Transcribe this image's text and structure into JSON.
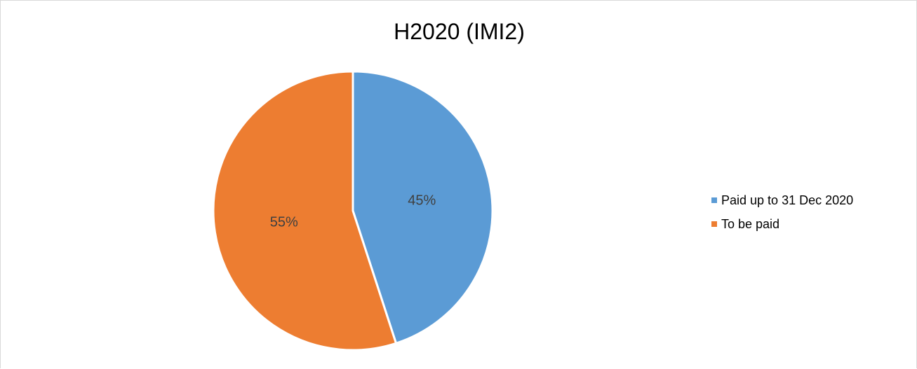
{
  "chart_data": {
    "type": "pie",
    "title": "H2020 (IMI2)",
    "categories": [
      "Paid up to 31 Dec 2020",
      "To be paid"
    ],
    "values": [
      45,
      55
    ],
    "data_labels": [
      "45%",
      "55%"
    ],
    "colors": [
      "#5b9bd5",
      "#ed7d31"
    ],
    "legend_position": "right"
  }
}
